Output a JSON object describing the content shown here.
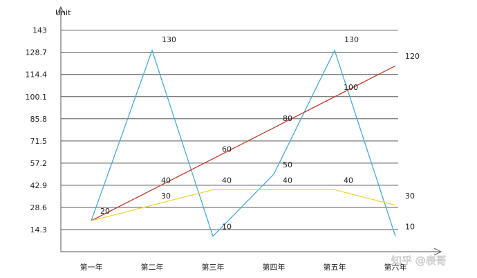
{
  "chart_data": {
    "type": "line",
    "ylabel": "Unit",
    "categories": [
      "第一年",
      "第二年",
      "第三年",
      "第四年",
      "第五年",
      "第六年"
    ],
    "yticks": [
      14.3,
      28.6,
      42.9,
      57.2,
      71.5,
      85.8,
      100.1,
      114.4,
      128.7,
      143
    ],
    "ylim": [
      0,
      143
    ],
    "grid": true,
    "series": [
      {
        "values": [
          20,
          130,
          10,
          50,
          130,
          10
        ],
        "color": "#4aa8d8",
        "labels": [
          "20",
          "130",
          "10",
          "50",
          "130",
          "10"
        ]
      },
      {
        "values": [
          20,
          40,
          60,
          80,
          100,
          120
        ],
        "color": "#c0392b",
        "labels": [
          "",
          "40",
          "60",
          "80",
          "100",
          "120"
        ]
      },
      {
        "values": [
          20,
          30,
          40,
          40,
          40,
          30
        ],
        "color": "#f0d23c",
        "labels": [
          "",
          "30",
          "40",
          "40",
          "40",
          "30"
        ]
      }
    ]
  },
  "watermark": "知乎 @表哥"
}
